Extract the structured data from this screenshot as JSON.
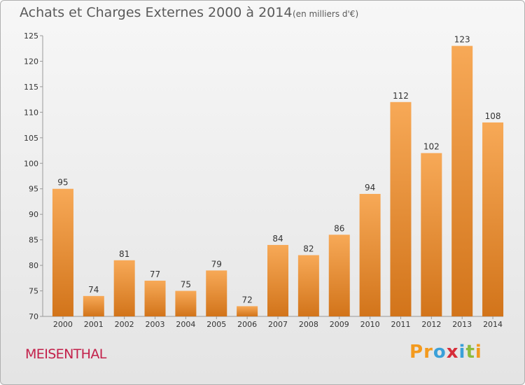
{
  "header": {
    "title": "Achats et Charges Externes 2000 à 2014",
    "subtitle": "(en milliers d'€)"
  },
  "footer": {
    "town": "MEISENTHAL",
    "logo_text": "Proxiti",
    "logo_colors": [
      "#f39a1e",
      "#f39a1e",
      "#3aa0d8",
      "#d62d39",
      "#3aa0d8",
      "#8dbb3c",
      "#f39a1e"
    ]
  },
  "colors": {
    "bar_light": "#f7a957",
    "bar_dark": "#d2741a",
    "town": "#c3204a"
  },
  "chart_data": {
    "type": "bar",
    "categories": [
      "2000",
      "2001",
      "2002",
      "2003",
      "2004",
      "2005",
      "2006",
      "2007",
      "2008",
      "2009",
      "2010",
      "2011",
      "2012",
      "2013",
      "2014"
    ],
    "values": [
      95,
      74,
      81,
      77,
      75,
      79,
      72,
      84,
      82,
      86,
      94,
      112,
      102,
      123,
      108
    ],
    "title": "Achats et Charges Externes 2000 à 2014",
    "subtitle": "(en milliers d'€)",
    "ylim": [
      70,
      125
    ],
    "yticks": [
      70,
      75,
      80,
      85,
      90,
      95,
      100,
      105,
      110,
      115,
      120,
      125
    ],
    "grid": false,
    "legend": "none"
  }
}
